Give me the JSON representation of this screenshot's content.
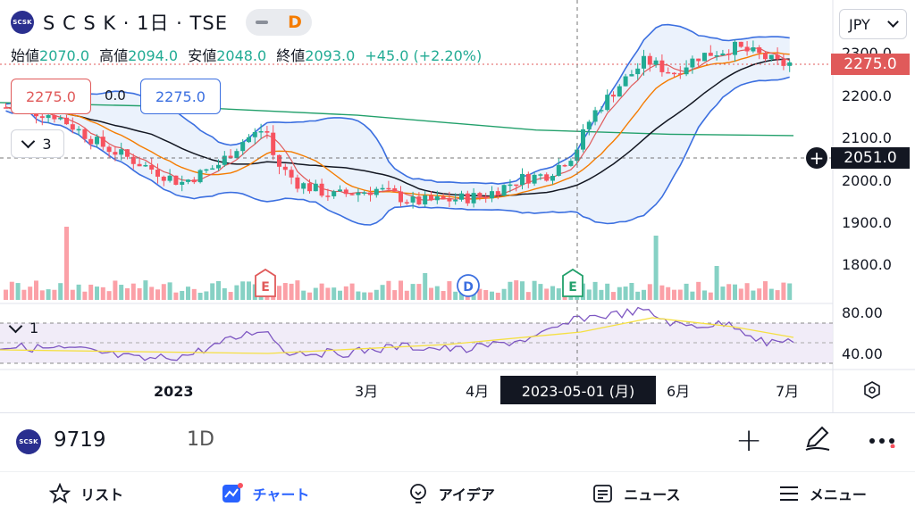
{
  "header": {
    "logo_text": "SCSK",
    "title": "S C S K · 1日 · TSE",
    "badge": "D",
    "ohlc": [
      {
        "key": "始値",
        "value": "2070.0"
      },
      {
        "key": "高値",
        "value": "2094.0"
      },
      {
        "key": "安値",
        "value": "2048.0"
      },
      {
        "key": "終値",
        "value": "2093.0"
      }
    ],
    "change": "+45.0 (+2.20%)"
  },
  "indicator_boxes": {
    "left": "2275.0",
    "middle": "0.0",
    "right": "2275.0"
  },
  "indicators_collapsed_count": "3",
  "rsi_collapsed_count": "1",
  "currency": "JPY",
  "price_axis": [
    "2300.0",
    "2200.0",
    "2100.0",
    "2000.0",
    "1900.0",
    "1800.0"
  ],
  "rsi_axis": [
    "80.00",
    "40.00"
  ],
  "current_price": "2275.0",
  "crosshair_price": "2051.0",
  "crosshair_date": "2023-05-01 (月)",
  "time_axis": [
    "2023",
    "3月",
    "4月",
    "6月",
    "7月"
  ],
  "events": [
    "E",
    "D",
    "E"
  ],
  "colors": {
    "up": "#22ab94",
    "down": "#f7525f",
    "bollinger": "#3b6fe0",
    "accent": "#2962ff",
    "rsi": "#7e57c2",
    "rsi_ma": "#f5e042"
  },
  "toolbar": {
    "symbol": "9719",
    "interval": "1D"
  },
  "nav": [
    {
      "label": "リスト",
      "icon": "star-icon"
    },
    {
      "label": "チャート",
      "icon": "chart-icon"
    },
    {
      "label": "アイデア",
      "icon": "lightbulb-icon"
    },
    {
      "label": "ニュース",
      "icon": "news-icon"
    },
    {
      "label": "メニュー",
      "icon": "menu-icon"
    }
  ]
}
